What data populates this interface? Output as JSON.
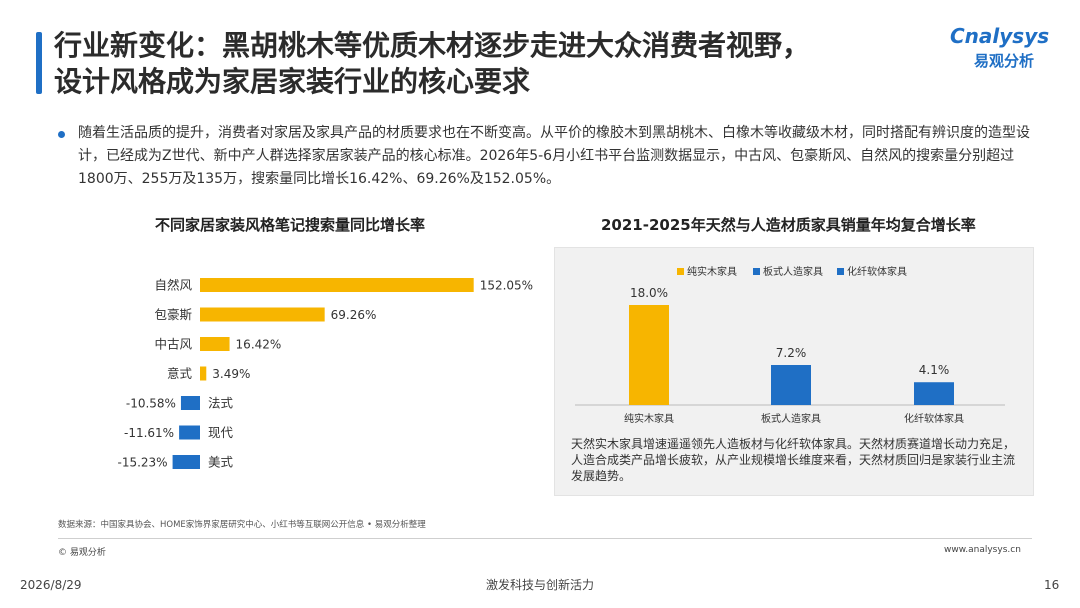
{
  "header": {
    "title_line1": "行业新变化：黑胡桃木等优质木材逐步走进大众消费者视野，",
    "title_line2": "设计风格成为家居家装行业的核心要求",
    "logo_en": "Cnalysys",
    "logo_cn": "易观分析"
  },
  "summary": "随着生活品质的提升，消费者对家居及家具产品的材质要求也在不断变高。从平价的橡胶木到黑胡桃木、白橡木等收藏级木材，同时搭配有辨识度的造型设计，已经成为Z世代、新中产人群选择家居家装产品的核心标准。2026年5-6月小红书平台监测数据显示，中古风、包豪斯风、自然风的搜索量分别超过1800万、255万及135万，搜索量同比增长16.42%、69.26%及152.05%。",
  "colors": {
    "positive": "#f7b500",
    "negative": "#1f6fc5",
    "accent": "#1f6fc5"
  },
  "chart_data": [
    {
      "type": "bar",
      "orientation": "horizontal",
      "title": "不同家居家装风格笔记搜索量同比增长率",
      "categories": [
        "自然风",
        "包豪斯",
        "中古风",
        "意式",
        "法式",
        "现代",
        "美式"
      ],
      "values": [
        152.05,
        69.26,
        16.42,
        3.49,
        -10.58,
        -11.61,
        -15.23
      ],
      "value_labels": [
        "152.05%",
        "69.26%",
        "16.42%",
        "3.49%",
        "-10.58%",
        "-11.61%",
        "-15.23%"
      ],
      "unit": "%",
      "xlim": [
        -30,
        152.05
      ],
      "grid": false
    },
    {
      "type": "bar",
      "title": "2021-2025年天然与人造材质家具销量年均复合增长率",
      "categories": [
        "纯实木家具",
        "板式人造家具",
        "化纤软体家具"
      ],
      "values": [
        18.0,
        7.2,
        4.1
      ],
      "value_labels": [
        "18.0%",
        "7.2%",
        "4.1%"
      ],
      "colors": [
        "#f7b500",
        "#1f6fc5",
        "#1f6fc5"
      ],
      "legend": [
        "纯实木家具",
        "板式人造家具",
        "化纤软体家具"
      ],
      "legend_position": "top",
      "unit": "%",
      "ylim": [
        0,
        18.0
      ],
      "grid": false,
      "annotation": "天然实木家具增速遥遥领先人造板材与化纤软体家具。天然材质赛道增长动力充足，人造合成类产品增长疲软，从产业规模增长维度来看，天然材质回归是家装行业主流发展趋势。"
    }
  ],
  "footer": {
    "source": "数据来源：中国家具协会、HOME家饰界家居研究中心、小红书等互联网公开信息 • 易观分析整理",
    "copyright": "© 易观分析",
    "website": "www.analysys.cn",
    "date": "2026/8/29",
    "slogan": "激发科技与创新活力",
    "page": "16"
  }
}
